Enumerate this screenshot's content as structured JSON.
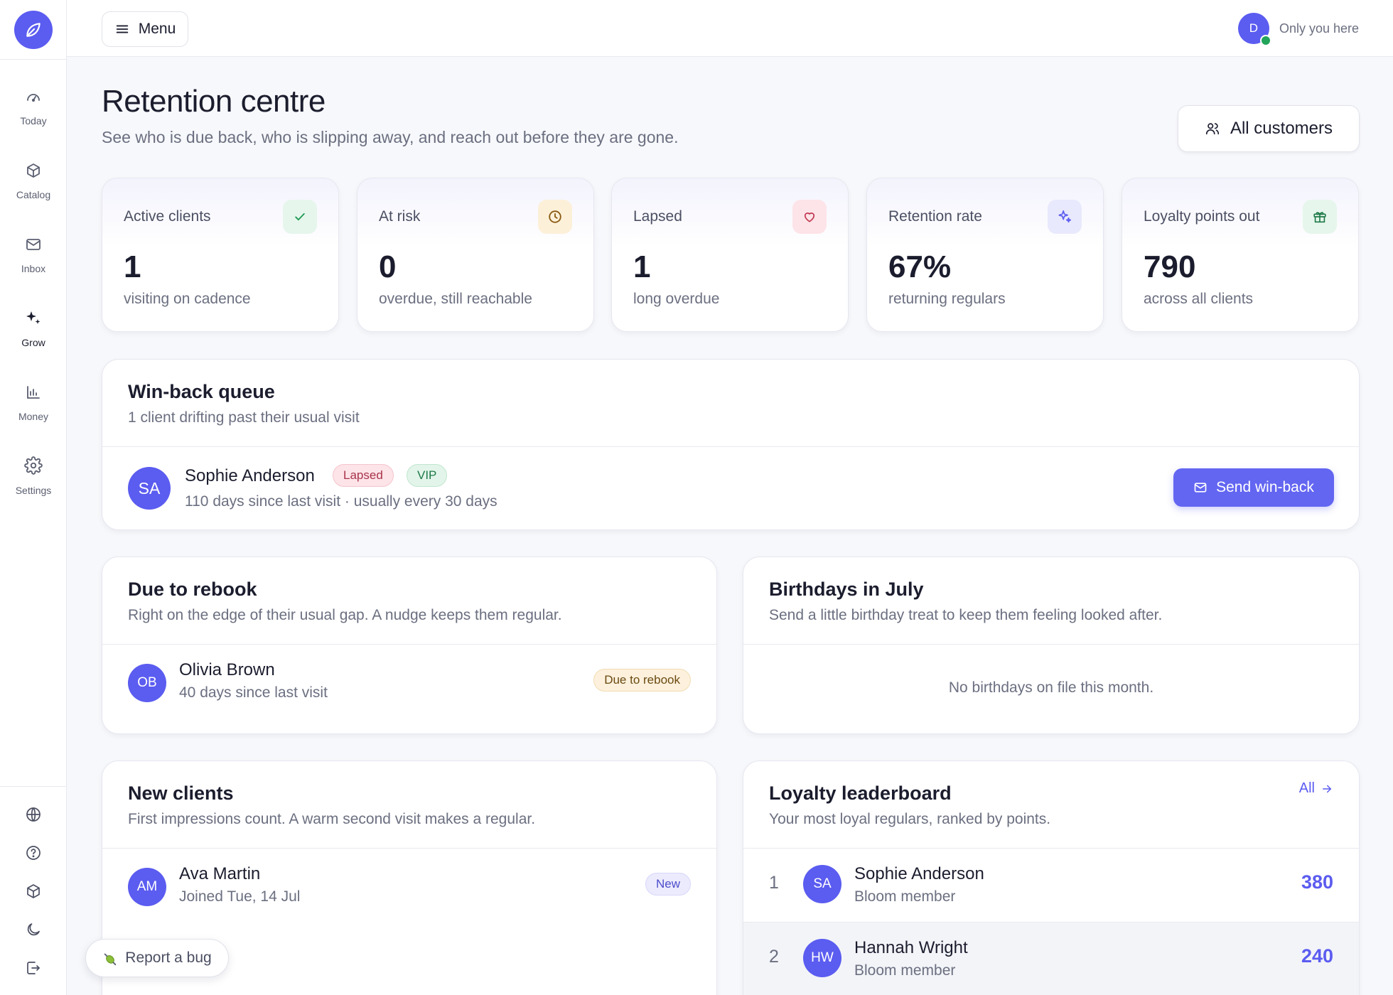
{
  "sidebar": {
    "items": [
      {
        "label": "Today",
        "icon": "gauge-icon"
      },
      {
        "label": "Catalog",
        "icon": "box-icon"
      },
      {
        "label": "Inbox",
        "icon": "mail-icon"
      },
      {
        "label": "Grow",
        "icon": "sparkles-icon"
      },
      {
        "label": "Money",
        "icon": "bar-chart-icon"
      },
      {
        "label": "Settings",
        "icon": "gear-icon"
      }
    ],
    "active": "Grow"
  },
  "topbar": {
    "menu_label": "Menu",
    "user_initial": "D",
    "user_status": "Only you here"
  },
  "header": {
    "title": "Retention centre",
    "subtitle": "See who is due back, who is slipping away, and reach out before they are gone.",
    "all_customers_label": "All customers"
  },
  "stats": [
    {
      "label": "Active clients",
      "value": "1",
      "note": "visiting on cadence",
      "icon": "check-icon",
      "bg": "#e6f6ec",
      "fg": "#1f9b55"
    },
    {
      "label": "At risk",
      "value": "0",
      "note": "overdue, still reachable",
      "icon": "clock-icon",
      "bg": "#fdf0d9",
      "fg": "#8a5a12"
    },
    {
      "label": "Lapsed",
      "value": "1",
      "note": "long overdue",
      "icon": "heart-icon",
      "bg": "#fde4e8",
      "fg": "#c0344d"
    },
    {
      "label": "Retention rate",
      "value": "67%",
      "note": "returning regulars",
      "icon": "sparkles-icon",
      "bg": "#e9e9fd",
      "fg": "#5b5cf0"
    },
    {
      "label": "Loyalty points out",
      "value": "790",
      "note": "across all clients",
      "icon": "gift-icon",
      "bg": "#e6f6ec",
      "fg": "#1f7a48"
    }
  ],
  "winback": {
    "title": "Win-back queue",
    "subtitle": "1 client drifting past their usual visit",
    "client": {
      "initials": "SA",
      "name": "Sophie Anderson",
      "badges": [
        {
          "label": "Lapsed",
          "bg": "#fde4e8",
          "fg": "#a8334a"
        },
        {
          "label": "VIP",
          "bg": "#e3f5ea",
          "fg": "#1f7a48"
        }
      ],
      "meta": "110 days since last visit · usually every 30 days"
    },
    "send_label": "Send win-back"
  },
  "rebook": {
    "title": "Due to rebook",
    "subtitle": "Right on the edge of their usual gap. A nudge keeps them regular.",
    "client": {
      "initials": "OB",
      "name": "Olivia Brown",
      "meta": "40 days since last visit",
      "badge": "Due to rebook"
    }
  },
  "birthdays": {
    "title": "Birthdays in July",
    "subtitle": "Send a little birthday treat to keep them feeling looked after.",
    "empty": "No birthdays on file this month."
  },
  "new_clients": {
    "title": "New clients",
    "subtitle": "First impressions count. A warm second visit makes a regular.",
    "client": {
      "initials": "AM",
      "name": "Ava Martin",
      "meta": "Joined Tue, 14 Jul",
      "badge": "New"
    }
  },
  "leaderboard": {
    "title": "Loyalty leaderboard",
    "subtitle": "Your most loyal regulars, ranked by points.",
    "all_label": "All",
    "rows": [
      {
        "rank": "1",
        "initials": "SA",
        "name": "Sophie Anderson",
        "tier": "Bloom member",
        "points": "380"
      },
      {
        "rank": "2",
        "initials": "HW",
        "name": "Hannah Wright",
        "tier": "Bloom member",
        "points": "240"
      }
    ]
  },
  "report_bug_label": "Report a bug",
  "colors": {
    "accent": "#5b5cf0",
    "text": "#1b1d2e",
    "muted": "#6b6f80"
  }
}
